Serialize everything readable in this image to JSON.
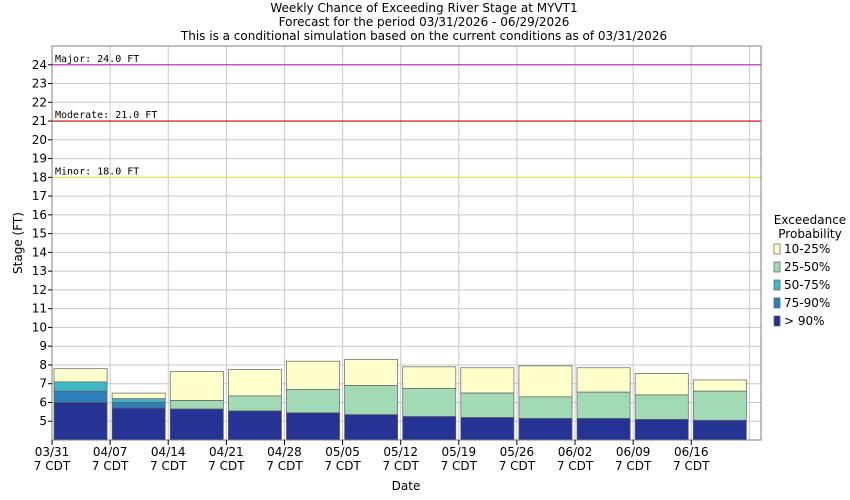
{
  "colors": {
    "p10_25": "#ffffcc",
    "p25_50": "#a1dab4",
    "p50_75": "#41b6c4",
    "p75_90": "#2c7fb8",
    "p90": "#253494",
    "major": "#cc33cc",
    "moderate": "#cc0000",
    "minor": "#e6e64c",
    "grid": "#c8c8c8"
  },
  "chart_data": {
    "type": "bar",
    "title": [
      "Weekly Chance of Exceeding River Stage at MYVT1",
      "Forecast for the period 03/31/2026 - 06/29/2026",
      "This is a conditional simulation based on the current conditions as of 03/31/2026"
    ],
    "xlabel": "Date",
    "ylabel": "Stage (FT)",
    "ylim": [
      4.0,
      25.0
    ],
    "yticks": [
      5,
      6,
      7,
      8,
      9,
      10,
      11,
      12,
      13,
      14,
      15,
      16,
      17,
      18,
      19,
      20,
      21,
      22,
      23,
      24
    ],
    "xticks": [
      {
        "date": "03/31",
        "tz": "7 CDT"
      },
      {
        "date": "04/07",
        "tz": "7 CDT"
      },
      {
        "date": "04/14",
        "tz": "7 CDT"
      },
      {
        "date": "04/21",
        "tz": "7 CDT"
      },
      {
        "date": "04/28",
        "tz": "7 CDT"
      },
      {
        "date": "05/05",
        "tz": "7 CDT"
      },
      {
        "date": "05/12",
        "tz": "7 CDT"
      },
      {
        "date": "05/19",
        "tz": "7 CDT"
      },
      {
        "date": "05/26",
        "tz": "7 CDT"
      },
      {
        "date": "06/02",
        "tz": "7 CDT"
      },
      {
        "date": "06/09",
        "tz": "7 CDT"
      },
      {
        "date": "06/16",
        "tz": "7 CDT"
      }
    ],
    "flood_levels": [
      {
        "label": "Major: 24.0 FT",
        "value": 24.0,
        "color_key": "major"
      },
      {
        "label": "Moderate: 21.0 FT",
        "value": 21.0,
        "color_key": "moderate"
      },
      {
        "label": "Minor: 18.0 FT",
        "value": 18.0,
        "color_key": "minor"
      }
    ],
    "legend": {
      "title": [
        "Exceedance",
        "Probability"
      ],
      "placement": "right",
      "entries": [
        {
          "label": "10-25%",
          "color_key": "p10_25"
        },
        {
          "label": "25-50%",
          "color_key": "p25_50"
        },
        {
          "label": "50-75%",
          "color_key": "p50_75"
        },
        {
          "label": "75-90%",
          "color_key": "p75_90"
        },
        {
          "label": "> 90%",
          "color_key": "p90"
        }
      ]
    },
    "weeks": [
      {
        "p90": 6.0,
        "p75_90": 6.6,
        "p50_75": 7.1,
        "p25_50": 7.1,
        "p10_25": 7.8
      },
      {
        "p90": 5.7,
        "p75_90": 6.0,
        "p50_75": 6.2,
        "p25_50": 6.2,
        "p10_25": 6.5
      },
      {
        "p90": 5.65,
        "p75_90": 5.65,
        "p50_75": 5.65,
        "p25_50": 6.1,
        "p10_25": 7.65
      },
      {
        "p90": 5.55,
        "p75_90": 5.55,
        "p50_75": 5.55,
        "p25_50": 6.35,
        "p10_25": 7.75
      },
      {
        "p90": 5.45,
        "p75_90": 5.45,
        "p50_75": 5.45,
        "p25_50": 6.7,
        "p10_25": 8.2
      },
      {
        "p90": 5.35,
        "p75_90": 5.35,
        "p50_75": 5.35,
        "p25_50": 6.9,
        "p10_25": 8.3
      },
      {
        "p90": 5.25,
        "p75_90": 5.25,
        "p50_75": 5.25,
        "p25_50": 6.75,
        "p10_25": 7.9
      },
      {
        "p90": 5.2,
        "p75_90": 5.2,
        "p50_75": 5.2,
        "p25_50": 6.5,
        "p10_25": 7.85
      },
      {
        "p90": 5.15,
        "p75_90": 5.15,
        "p50_75": 5.15,
        "p25_50": 6.3,
        "p10_25": 7.95
      },
      {
        "p90": 5.15,
        "p75_90": 5.15,
        "p50_75": 5.15,
        "p25_50": 6.55,
        "p10_25": 7.85
      },
      {
        "p90": 5.1,
        "p75_90": 5.1,
        "p50_75": 5.1,
        "p25_50": 6.4,
        "p10_25": 7.55
      },
      {
        "p90": 5.05,
        "p75_90": 5.05,
        "p50_75": 5.05,
        "p25_50": 6.6,
        "p10_25": 7.2
      }
    ]
  }
}
